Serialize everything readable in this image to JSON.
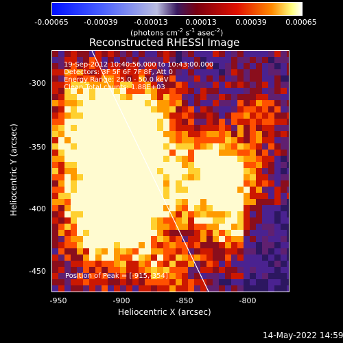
{
  "colorbar": {
    "ticks": [
      "-0.00065",
      "-0.00039",
      "-0.00013",
      "0.00013",
      "0.00039",
      "0.00065"
    ],
    "unit_prefix": "(photons cm",
    "unit_exp1": "-2",
    "unit_mid": " s",
    "unit_exp2": "-1",
    "unit_mid2": " asec",
    "unit_exp3": "-2",
    "unit_suffix": ")"
  },
  "title": "Reconstructed RHESSI Image",
  "annotations": {
    "time_range": "19-Sep-2012 10:40:56.000 to 10:43:00.000",
    "detectors": "Detectors: 3F 5F 6F 7F 8F, Att 0",
    "energy_range": "Energy Range: 25.0 - 50.0 keV",
    "method": "Clean    Total counts: 1.88E+03",
    "peak": "Position of Peak = [-915,-354]"
  },
  "axes": {
    "y_label": "Heliocentric Y (arcsec)",
    "x_label": "Heliocentric X (arcsec)",
    "y_ticks": [
      "-300",
      "-350",
      "-400",
      "-450"
    ],
    "x_ticks": [
      "-950",
      "-900",
      "-850",
      "-800"
    ]
  },
  "footer": {
    "date": "14-May-2022 14:59"
  }
}
